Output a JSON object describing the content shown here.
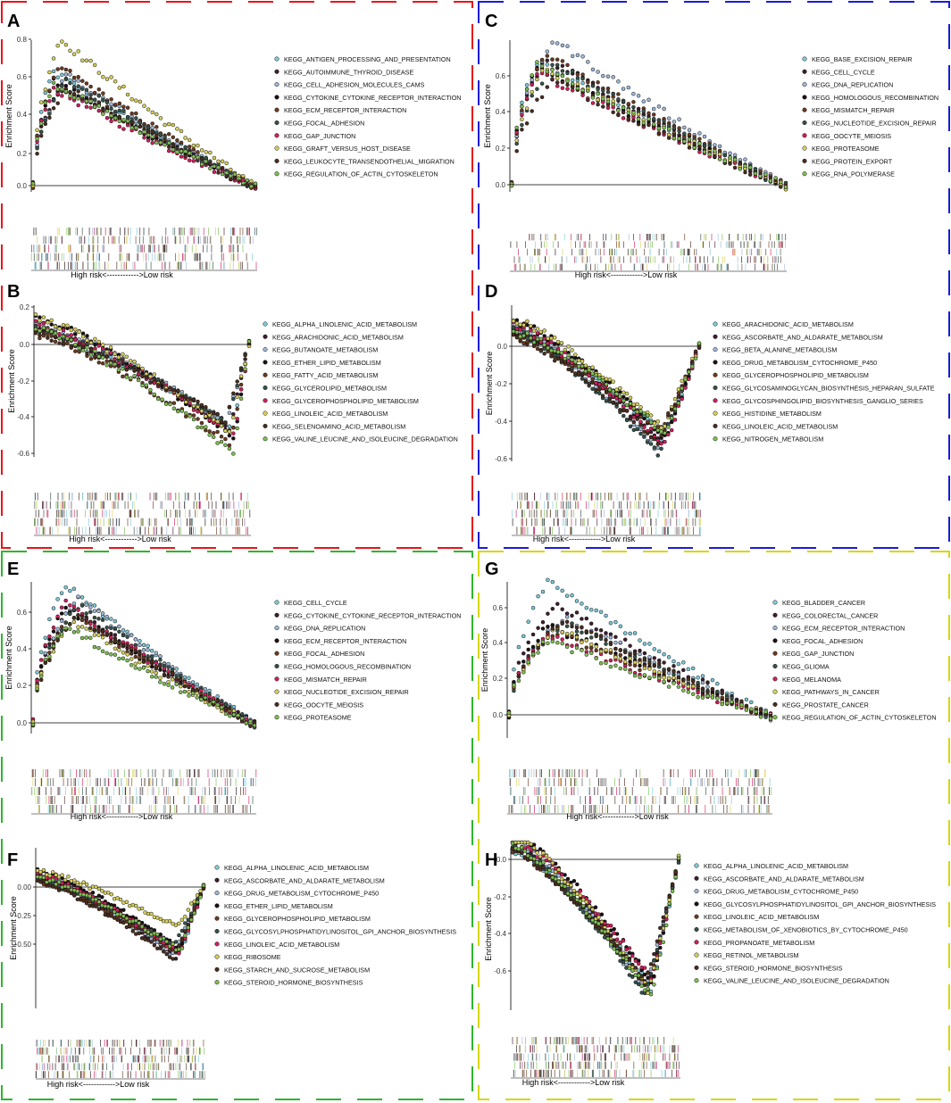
{
  "figure": {
    "ylabel": "Enrichment Score",
    "xlabel": "High risk<------------>Low risk"
  },
  "colors": {
    "red": "#e8141b",
    "blue": "#1a1adb",
    "green": "#2fb52f",
    "yellow": "#d6d60e",
    "series": [
      "#7ec9d8",
      "#3d1f2e",
      "#9fb8d8",
      "#1c1014",
      "#6d3a20",
      "#35524a",
      "#d21e5c",
      "#d7d05a",
      "#4a2d1e",
      "#7fbf52"
    ]
  },
  "panels": [
    {
      "letter": "A",
      "yticks": [
        "0.0",
        "0.2",
        "0.4",
        "0.6",
        "0.8"
      ],
      "legend": [
        "KEGG_ANTIGEN_PROCESSING_AND_PRESENTATION",
        "KEGG_AUTOIMMUNE_THYROID_DISEASE",
        "KEGG_CELL_ADHESION_MOLECULES_CAMS",
        "KEGG_CYTOKINE_CYTOKINE_RECEPTOR_INTERACTION",
        "KEGG_ECM_RECEPTOR_INTERACTION",
        "KEGG_FOCAL_ADHESION",
        "KEGG_GAP_JUNCTION",
        "KEGG_GRAFT_VERSUS_HOST_DISEASE",
        "KEGG_LEUKOCYTE_TRANSENDOTHELIAL_MIGRATION",
        "KEGG_REGULATION_OF_ACTIN_CYTOSKELETON"
      ],
      "xlabel": "High risk<------------>Low risk"
    },
    {
      "letter": "B",
      "yticks": [
        "-0.6",
        "-0.4",
        "-0.2",
        "0.0",
        "0.2"
      ],
      "legend": [
        "KEGG_ALPHA_LINOLENIC_ACID_METABOLISM",
        "KEGG_ARACHIDONIC_ACID_METABOLISM",
        "KEGG_BUTANOATE_METABOLISM",
        "KEGG_ETHER_LIPID_METABOLISM",
        "KEGG_FATTY_ACID_METABOLISM",
        "KEGG_GLYCEROLIPID_METABOLISM",
        "KEGG_GLYCEROPHOSPHOLIPID_METABOLISM",
        "KEGG_LINOLEIC_ACID_METABOLISM",
        "KEGG_SELENOAMINO_ACID_METABOLISM",
        "KEGG_VALINE_LEUCINE_AND_ISOLEUCINE_DEGRADATION"
      ],
      "xlabel": "High risk<------------>Low risk"
    },
    {
      "letter": "C",
      "yticks": [
        "0.0",
        "0.2",
        "0.4",
        "0.6"
      ],
      "legend": [
        "KEGG_BASE_EXCISION_REPAIR",
        "KEGG_CELL_CYCLE",
        "KEGG_DNA_REPLICATION",
        "KEGG_HOMOLOGOUS_RECOMBINATION",
        "KEGG_MISMATCH_REPAIR",
        "KEGG_NUCLEOTIDE_EXCISION_REPAIR",
        "KEGG_OOCYTE_MEIOSIS",
        "KEGG_PROTEASOME",
        "KEGG_PROTEIN_EXPORT",
        "KEGG_RNA_POLYMERASE"
      ],
      "xlabel": "High risk<------------>Low risk"
    },
    {
      "letter": "D",
      "yticks": [
        "-0.6",
        "-0.4",
        "-0.2",
        "0.0"
      ],
      "legend": [
        "KEGG_ARACHIDONIC_ACID_METABOLISM",
        "KEGG_ASCORBATE_AND_ALDARATE_METABOLISM",
        "KEGG_BETA_ALANINE_METABOLISM",
        "KEGG_DRUG_METABOLISM_CYTOCHROME_P450",
        "KEGG_GLYCEROPHOSPHOLIPID_METABOLISM",
        "KEGG_GLYCOSAMINOGLYCAN_BIOSYNTHESIS_HEPARAN_SULFATE",
        "KEGG_GLYCOSPHINGOLIPID_BIOSYNTHESIS_GANGLIO_SERIES",
        "KEGG_HISTIDINE_METABOLISM",
        "KEGG_LINOLEIC_ACID_METABOLISM",
        "KEGG_NITROGEN_METABOLISM"
      ],
      "xlabel": "High risk<------------>Low risk"
    },
    {
      "letter": "E",
      "yticks": [
        "0.0",
        "0.2",
        "0.4",
        "0.6"
      ],
      "legend": [
        "KEGG_CELL_CYCLE",
        "KEGG_CYTOKINE_CYTOKINE_RECEPTOR_INTERACTION",
        "KEGG_DNA_REPLICATION",
        "KEGG_ECM_RECEPTOR_INTERACTION",
        "KEGG_FOCAL_ADHESION",
        "KEGG_HOMOLOGOUS_RECOMBINATION",
        "KEGG_MISMATCH_REPAIR",
        "KEGG_NUCLEOTIDE_EXCISION_REPAIR",
        "KEGG_OOCYTE_MEIOSIS",
        "KEGG_PROTEASOME"
      ],
      "xlabel": "High risk<------------>Low risk"
    },
    {
      "letter": "F",
      "yticks": [
        "-0.50",
        "-0.25",
        "0.00"
      ],
      "legend": [
        "KEGG_ALPHA_LINOLENIC_ACID_METABOLISM",
        "KEGG_ASCORBATE_AND_ALDARATE_METABOLISM",
        "KEGG_DRUG_METABOLISM_CYTOCHROME_P450",
        "KEGG_ETHER_LIPID_METABOLISM",
        "KEGG_GLYCEROPHOSPHOLIPID_METABOLISM",
        "KEGG_GLYCOSYLPHOSPHATIDYLINOSITOL_GPI_ANCHOR_BIOSYNTHESIS",
        "KEGG_LINOLEIC_ACID_METABOLISM",
        "KEGG_RIBOSOME",
        "KEGG_STARCH_AND_SUCROSE_METABOLISM",
        "KEGG_STEROID_HORMONE_BIOSYNTHESIS"
      ],
      "xlabel": "High risk<------------>Low risk"
    },
    {
      "letter": "G",
      "yticks": [
        "0.0",
        "0.2",
        "0.4",
        "0.6"
      ],
      "legend": [
        "KEGG_BLADDER_CANCER",
        "KEGG_COLORECTAL_CANCER",
        "KEGG_ECM_RECEPTOR_INTERACTION",
        "KEGG_FOCAL_ADHESION",
        "KEGG_GAP_JUNCTION",
        "KEGG_GLIOMA",
        "KEGG_MELANOMA",
        "KEGG_PATHWAYS_IN_CANCER",
        "KEGG_PROSTATE_CANCER",
        "KEGG_REGULATION_OF_ACTIN_CYTOSKELETON"
      ],
      "xlabel": "High risk<------------>Low risk"
    },
    {
      "letter": "H",
      "yticks": [
        "-0.6",
        "-0.4",
        "-0.2",
        "0.0"
      ],
      "legend": [
        "KEGG_ALPHA_LINOLENIC_ACID_METABOLISM",
        "KEGG_ASCORBATE_AND_ALDARATE_METABOLISM",
        "KEGG_DRUG_METABOLISM_CYTOCHROME_P450",
        "KEGG_GLYCOSYLPHOSPHATIDYLINOSITOL_GPI_ANCHOR_BIOSYNTHESIS",
        "KEGG_LINOLEIC_ACID_METABOLISM",
        "KEGG_METABOLISM_OF_XENOBIOTICS_BY_CYTOCHROME_P450",
        "KEGG_PROPANOATE_METABOLISM",
        "KEGG_RETINOL_METABOLISM",
        "KEGG_STEROID_HORMONE_BIOSYNTHESIS",
        "KEGG_VALINE_LEUCINE_AND_ISOLEUCINE_DEGRADATION"
      ],
      "xlabel": "High risk<------------>Low risk"
    }
  ],
  "chart_data": [
    {
      "type": "scatter",
      "panel": "A",
      "ylim": [
        -0.02,
        0.83
      ],
      "series_peak_es": [
        0.62,
        0.55,
        0.6,
        0.57,
        0.65,
        0.58,
        0.53,
        0.8,
        0.54,
        0.56
      ]
    },
    {
      "type": "scatter",
      "panel": "B",
      "ylim": [
        -0.62,
        0.22
      ],
      "series_min_es": [
        -0.45,
        -0.47,
        -0.44,
        -0.52,
        -0.55,
        -0.43,
        -0.5,
        -0.48,
        -0.42,
        -0.6
      ]
    },
    {
      "type": "scatter",
      "panel": "C",
      "ylim": [
        -0.05,
        0.82
      ],
      "series_peak_es": [
        0.68,
        0.7,
        0.8,
        0.65,
        0.72,
        0.67,
        0.62,
        0.64,
        0.58,
        0.66
      ]
    },
    {
      "type": "scatter",
      "panel": "D",
      "ylim": [
        -0.6,
        0.22
      ],
      "series_min_es": [
        -0.48,
        -0.52,
        -0.55,
        -0.5,
        -0.45,
        -0.57,
        -0.53,
        -0.44,
        -0.51,
        -0.47
      ]
    },
    {
      "type": "scatter",
      "panel": "E",
      "ylim": [
        -0.05,
        0.78
      ],
      "series_peak_es": [
        0.75,
        0.62,
        0.68,
        0.63,
        0.6,
        0.64,
        0.65,
        0.55,
        0.58,
        0.52
      ]
    },
    {
      "type": "scatter",
      "panel": "F",
      "ylim": [
        -0.66,
        0.18
      ],
      "series_min_es": [
        -0.58,
        -0.62,
        -0.6,
        -0.55,
        -0.57,
        -0.52,
        -0.59,
        -0.35,
        -0.63,
        -0.56
      ]
    },
    {
      "type": "scatter",
      "panel": "G",
      "ylim": [
        -0.05,
        0.78
      ],
      "series_peak_es": [
        0.75,
        0.62,
        0.55,
        0.5,
        0.47,
        0.52,
        0.44,
        0.48,
        0.53,
        0.42
      ]
    },
    {
      "type": "scatter",
      "panel": "H",
      "ylim": [
        -0.75,
        0.06
      ],
      "series_min_es": [
        -0.7,
        -0.68,
        -0.72,
        -0.66,
        -0.69,
        -0.73,
        -0.65,
        -0.71,
        -0.67,
        -0.74
      ]
    }
  ]
}
